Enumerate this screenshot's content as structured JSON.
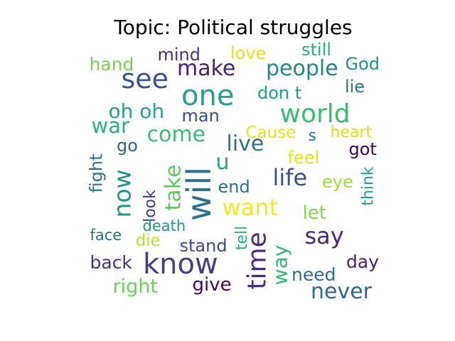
{
  "title": "Topic: Political struggles",
  "words": [
    {
      "text": "one",
      "color": "#2a9d8e"
    },
    {
      "text": "will",
      "color": "#2c728e"
    },
    {
      "text": "know",
      "color": "#433e85"
    },
    {
      "text": "see",
      "color": "#3b528b"
    },
    {
      "text": "now",
      "color": "#21918c"
    },
    {
      "text": "time",
      "color": "#472d7b"
    },
    {
      "text": "world",
      "color": "#3cbb75"
    },
    {
      "text": "make",
      "color": "#481f70"
    },
    {
      "text": "people",
      "color": "#25858e"
    },
    {
      "text": "take",
      "color": "#5ec962"
    },
    {
      "text": "life",
      "color": "#3b528b"
    },
    {
      "text": "want",
      "color": "#fde725"
    },
    {
      "text": "say",
      "color": "#482878"
    },
    {
      "text": "come",
      "color": "#3cbb75"
    },
    {
      "text": "live",
      "color": "#2c728e"
    },
    {
      "text": "u",
      "color": "#21a685"
    },
    {
      "text": "war",
      "color": "#28ae80"
    },
    {
      "text": "never",
      "color": "#31688e"
    },
    {
      "text": "oh oh",
      "color": "#2a9d8e"
    },
    {
      "text": "way",
      "color": "#35b779"
    },
    {
      "text": "hand",
      "color": "#7ad151"
    },
    {
      "text": "mind",
      "color": "#46327e"
    },
    {
      "text": "love",
      "color": "#dde318"
    },
    {
      "text": "still",
      "color": "#27ad81"
    },
    {
      "text": "God",
      "color": "#21918c"
    },
    {
      "text": "don t",
      "color": "#1f9e89"
    },
    {
      "text": "lie",
      "color": "#2e6f8e"
    },
    {
      "text": "man",
      "color": "#3e4989"
    },
    {
      "text": "Cause",
      "color": "#e5e419"
    },
    {
      "text": "s",
      "color": "#31688e"
    },
    {
      "text": "heart",
      "color": "#d8e219"
    },
    {
      "text": "go",
      "color": "#355f8d"
    },
    {
      "text": "got",
      "color": "#440154"
    },
    {
      "text": "feel",
      "color": "#e7e419"
    },
    {
      "text": "fight",
      "color": "#2d708e"
    },
    {
      "text": "look",
      "color": "#453781"
    },
    {
      "text": "end",
      "color": "#2c718e"
    },
    {
      "text": "eye",
      "color": "#a0da39"
    },
    {
      "text": "think",
      "color": "#1fa088"
    },
    {
      "text": "let",
      "color": "#86d549"
    },
    {
      "text": "face",
      "color": "#2f6c8e"
    },
    {
      "text": "death",
      "color": "#1f968b"
    },
    {
      "text": "die",
      "color": "#bddf26"
    },
    {
      "text": "tell",
      "color": "#29af7f"
    },
    {
      "text": "stand",
      "color": "#3e4a89"
    },
    {
      "text": "back",
      "color": "#46337f"
    },
    {
      "text": "need",
      "color": "#2f6b8e"
    },
    {
      "text": "day",
      "color": "#481b6d"
    },
    {
      "text": "right",
      "color": "#6ccd5a"
    },
    {
      "text": "give",
      "color": "#450457"
    }
  ]
}
